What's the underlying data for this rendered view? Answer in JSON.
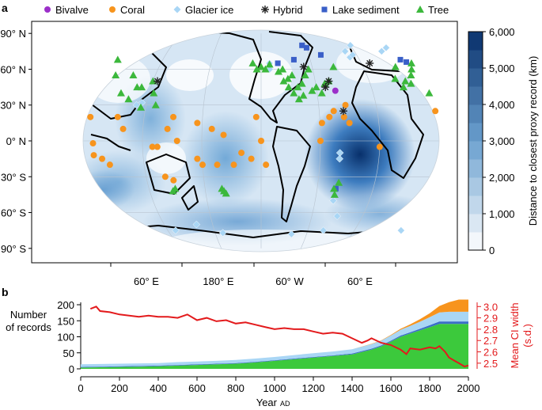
{
  "panel_a": {
    "label": "a",
    "legend": [
      {
        "name": "Bivalve",
        "color": "#9b2fc9",
        "marker": "circle"
      },
      {
        "name": "Coral",
        "color": "#f7941d",
        "marker": "circle"
      },
      {
        "name": "Glacier ice",
        "color": "#a9d6f5",
        "marker": "diamond"
      },
      {
        "name": "Hybrid",
        "color": "#222222",
        "marker": "asterisk"
      },
      {
        "name": "Lake sediment",
        "color": "#3a5fc8",
        "marker": "square"
      },
      {
        "name": "Tree",
        "color": "#3cb83c",
        "marker": "triangle"
      }
    ],
    "lat_labels": [
      "90° N",
      "60° N",
      "30° N",
      "0° N",
      "30° S",
      "60° S",
      "90° S"
    ],
    "lon_labels": [
      "60° E",
      "180° E",
      "60° W",
      "60° E"
    ],
    "colorbar": {
      "label": "Distance to closest proxy record (km)",
      "ticks": [
        "6,000",
        "5,000",
        "4,000",
        "3,000",
        "2,000",
        "1,000",
        "0"
      ],
      "range": [
        0,
        6000
      ],
      "color_low": "#ffffff",
      "color_high": "#08306b"
    }
  },
  "panel_b": {
    "label": "b",
    "ylabel_left": [
      "Number",
      "of records"
    ],
    "ylabel_right": [
      "Mean CI width",
      "(s.d.)"
    ],
    "xlabel": "Year",
    "xlabel_suffix": "AD",
    "x_ticks": [
      "0",
      "200",
      "400",
      "600",
      "800",
      "1000",
      "1200",
      "1400",
      "1600",
      "1800",
      "2000"
    ],
    "y_ticks_left": [
      "200",
      "150",
      "100",
      "50",
      "0"
    ],
    "y_ticks_right": [
      "3.0",
      "2.9",
      "2.8",
      "2.7",
      "2.6",
      "2.5"
    ]
  },
  "chart_data": [
    {
      "type": "scatter",
      "subtype": "map",
      "title": "",
      "series": [
        {
          "name": "Coral",
          "points": [
            [
              -155,
              20
            ],
            [
              -150,
              0
            ],
            [
              -160,
              -15
            ],
            [
              -145,
              -20
            ],
            [
              -170,
              -10
            ],
            [
              -178,
              -20
            ],
            [
              120,
              20
            ],
            [
              115,
              10
            ],
            [
              125,
              0
            ],
            [
              105,
              -5
            ],
            [
              100,
              -5
            ],
            [
              110,
              -30
            ],
            [
              118,
              -33
            ],
            [
              145,
              -15
            ],
            [
              150,
              -20
            ],
            [
              165,
              -20
            ],
            [
              172,
              5
            ],
            [
              160,
              10
            ],
            [
              145,
              15
            ],
            [
              48,
              -15
            ],
            [
              55,
              -20
            ],
            [
              40,
              -12
            ],
            [
              40,
              -2
            ],
            [
              63,
              20
            ],
            [
              70,
              10
            ],
            [
              -75,
              25
            ],
            [
              -80,
              20
            ],
            [
              -65,
              20
            ],
            [
              -60,
              15
            ],
            [
              -88,
              15
            ],
            [
              -90,
              0
            ],
            [
              -30,
              -5
            ],
            [
              30,
              25
            ],
            [
              35,
              20
            ],
            [
              -62,
              30
            ]
          ]
        },
        {
          "name": "Glacier ice",
          "points": [
            [
              -140,
              60
            ],
            [
              -140,
              65
            ],
            [
              -70,
              -10
            ],
            [
              -70,
              -15
            ],
            [
              -40,
              70
            ],
            [
              -42,
              75
            ],
            [
              -35,
              72
            ],
            [
              -30,
              80
            ],
            [
              80,
              30
            ],
            [
              85,
              32
            ],
            [
              -70,
              -50
            ],
            [
              30,
              -75
            ],
            [
              100,
              -75
            ],
            [
              130,
              -70
            ],
            [
              160,
              -77
            ],
            [
              -110,
              -78
            ],
            [
              -70,
              -75
            ],
            [
              -60,
              -63
            ],
            [
              5,
              75
            ],
            [
              15,
              78
            ]
          ]
        },
        {
          "name": "Lake sediment",
          "points": [
            [
              -95,
              80
            ],
            [
              -90,
              78
            ],
            [
              -130,
              65
            ],
            [
              -110,
              68
            ],
            [
              -75,
              72
            ],
            [
              -70,
              -40
            ],
            [
              20,
              68
            ],
            [
              25,
              66
            ]
          ]
        },
        {
          "name": "Bivalve",
          "points": [
            [
              -70,
              42
            ]
          ]
        },
        {
          "name": "Tree",
          "points": [
            [
              -150,
              62
            ],
            [
              -145,
              60
            ],
            [
              -140,
              64
            ],
            [
              -130,
              58
            ],
            [
              -125,
              50
            ],
            [
              -120,
              45
            ],
            [
              -115,
              40
            ],
            [
              -110,
              35
            ],
            [
              -105,
              48
            ],
            [
              -100,
              55
            ],
            [
              -95,
              60
            ],
            [
              -90,
              45
            ],
            [
              -85,
              40
            ],
            [
              -80,
              48
            ],
            [
              -120,
              52
            ],
            [
              -115,
              55
            ],
            [
              -110,
              45
            ],
            [
              -105,
              38
            ],
            [
              -95,
              42
            ],
            [
              -75,
              50
            ],
            [
              -70,
              -45
            ],
            [
              -72,
              -40
            ],
            [
              -68,
              -35
            ],
            [
              -125,
              60
            ],
            [
              10,
              50
            ],
            [
              15,
              48
            ],
            [
              20,
              55
            ],
            [
              25,
              60
            ],
            [
              5,
              45
            ],
            [
              30,
              65
            ],
            [
              0,
              52
            ],
            [
              35,
              68
            ],
            [
              8,
              62
            ],
            [
              115,
              -42
            ],
            [
              118,
              -40
            ],
            [
              170,
              -42
            ],
            [
              172,
              -44
            ],
            [
              168,
              -40
            ],
            [
              80,
              45
            ],
            [
              90,
              50
            ],
            [
              100,
              30
            ],
            [
              85,
              28
            ],
            [
              95,
              40
            ],
            [
              -65,
              62
            ],
            [
              45,
              55
            ],
            [
              60,
              40
            ],
            [
              70,
              35
            ],
            [
              75,
              45
            ],
            [
              65,
              55
            ],
            [
              30,
              40
            ],
            [
              -160,
              65
            ],
            [
              -155,
              60
            ]
          ]
        },
        {
          "name": "Hybrid",
          "points": [
            [
              -80,
              45
            ],
            [
              -75,
              50
            ],
            [
              -100,
              62
            ],
            [
              -65,
              25
            ],
            [
              95,
              50
            ],
            [
              -20,
              65
            ]
          ]
        }
      ]
    },
    {
      "type": "area",
      "title": "",
      "xlabel": "Year AD",
      "ylabel": "Number of records",
      "xlim": [
        0,
        2000
      ],
      "ylim": [
        0,
        200
      ],
      "x": [
        0,
        100,
        200,
        300,
        400,
        500,
        600,
        700,
        800,
        900,
        1000,
        1100,
        1200,
        1300,
        1400,
        1500,
        1550,
        1600,
        1650,
        1700,
        1750,
        1800,
        1850,
        1900,
        1950,
        2000
      ],
      "series": [
        {
          "name": "Tree",
          "color": "#3cc93c",
          "values": [
            4,
            5,
            6,
            7,
            8,
            10,
            12,
            14,
            16,
            20,
            25,
            30,
            35,
            40,
            45,
            60,
            70,
            85,
            100,
            110,
            120,
            130,
            140,
            140,
            140,
            140
          ]
        },
        {
          "name": "Lake sediment",
          "color": "#3a6fc8",
          "values": [
            2,
            2,
            2,
            2,
            2,
            2,
            2,
            2,
            2,
            2,
            2,
            2,
            2,
            2,
            3,
            3,
            3,
            3,
            4,
            4,
            5,
            6,
            8,
            8,
            8,
            8
          ]
        },
        {
          "name": "Glacier ice",
          "color": "#a9d6f5",
          "values": [
            8,
            8,
            8,
            8,
            8,
            9,
            9,
            9,
            10,
            10,
            10,
            11,
            12,
            12,
            13,
            14,
            15,
            16,
            18,
            20,
            22,
            25,
            28,
            30,
            30,
            30
          ]
        },
        {
          "name": "Coral",
          "color": "#f7941d",
          "values": [
            0,
            0,
            0,
            0,
            0,
            0,
            0,
            0,
            0,
            0,
            0,
            0,
            0,
            0,
            0,
            1,
            1,
            2,
            3,
            5,
            8,
            12,
            20,
            30,
            38,
            38
          ]
        }
      ]
    },
    {
      "type": "line",
      "title": "",
      "ylabel": "Mean CI width (s.d.)",
      "xlim": [
        0,
        2000
      ],
      "ylim": [
        2.45,
        3.03
      ],
      "series": [
        {
          "name": "",
          "color": "#e31a1c",
          "x": [
            50,
            80,
            100,
            150,
            200,
            250,
            300,
            350,
            400,
            450,
            500,
            550,
            600,
            650,
            700,
            750,
            800,
            850,
            900,
            950,
            1000,
            1050,
            1100,
            1150,
            1200,
            1250,
            1300,
            1350,
            1400,
            1450,
            1480,
            1500,
            1550,
            1600,
            1650,
            1680,
            1700,
            1750,
            1800,
            1830,
            1850,
            1880,
            1900,
            1930,
            1950,
            1980,
            2000
          ],
          "values": [
            2.98,
            3.0,
            2.96,
            2.95,
            2.93,
            2.92,
            2.91,
            2.92,
            2.91,
            2.91,
            2.9,
            2.93,
            2.88,
            2.9,
            2.87,
            2.88,
            2.85,
            2.86,
            2.84,
            2.82,
            2.8,
            2.81,
            2.8,
            2.8,
            2.78,
            2.76,
            2.77,
            2.76,
            2.72,
            2.68,
            2.7,
            2.72,
            2.68,
            2.66,
            2.62,
            2.58,
            2.63,
            2.62,
            2.64,
            2.63,
            2.65,
            2.6,
            2.55,
            2.52,
            2.5,
            2.47,
            2.48
          ]
        }
      ]
    }
  ]
}
